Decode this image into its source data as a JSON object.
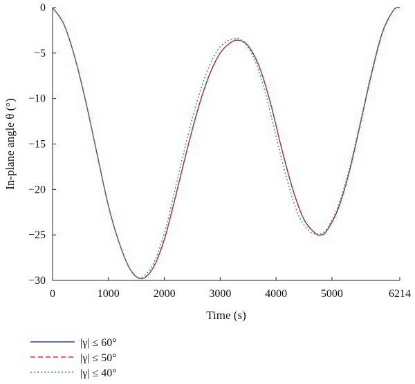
{
  "chart_data": {
    "type": "line",
    "title": "",
    "xlabel": "Time (s)",
    "ylabel": "In-plane angle θ (°)",
    "xlim": [
      0,
      6214
    ],
    "ylim": [
      -30,
      0
    ],
    "x_ticks": [
      0,
      1000,
      2000,
      3000,
      4000,
      5000,
      6214
    ],
    "x_tick_labels": [
      "0",
      "1000",
      "2000",
      "3000",
      "4000",
      "5000",
      "6214"
    ],
    "y_ticks": [
      0,
      -5,
      -10,
      -15,
      -20,
      -25,
      -30
    ],
    "y_tick_labels": [
      "0",
      "−5",
      "−10",
      "−15",
      "−20",
      "−25",
      "−30"
    ],
    "grid": false,
    "legend_position": "bottom-left",
    "series": [
      {
        "name": "|γ| ≤ 60°",
        "color": "#2c3e9e",
        "dash": "solid",
        "x": [
          0,
          200,
          400,
          600,
          800,
          1000,
          1200,
          1400,
          1600,
          1800,
          2000,
          2200,
          2400,
          2600,
          2800,
          3000,
          3200,
          3340,
          3500,
          3700,
          3900,
          4100,
          4300,
          4500,
          4700,
          4800,
          4900,
          5100,
          5300,
          5500,
          5700,
          5900,
          6100,
          6214
        ],
        "y": [
          0,
          -1.8,
          -5.5,
          -10.5,
          -16.2,
          -21.8,
          -26.0,
          -28.9,
          -29.8,
          -28.6,
          -25.5,
          -20.8,
          -15.8,
          -11.2,
          -7.5,
          -5.0,
          -3.8,
          -3.6,
          -4.2,
          -6.5,
          -10.5,
          -15.5,
          -20.0,
          -23.3,
          -24.8,
          -25.0,
          -24.6,
          -22.3,
          -18.3,
          -13.0,
          -7.5,
          -2.8,
          -0.3,
          0
        ]
      },
      {
        "name": "|γ| ≤ 50°",
        "color": "#e0303a",
        "dash": "dashed",
        "x": [
          0,
          200,
          400,
          600,
          800,
          1000,
          1200,
          1400,
          1600,
          1800,
          2000,
          2200,
          2400,
          2600,
          2800,
          3000,
          3200,
          3340,
          3500,
          3700,
          3900,
          4100,
          4300,
          4500,
          4700,
          4800,
          4900,
          5100,
          5300,
          5500,
          5700,
          5900,
          6100,
          6214
        ],
        "y": [
          0,
          -1.8,
          -5.5,
          -10.5,
          -16.2,
          -21.8,
          -26.0,
          -28.9,
          -29.8,
          -28.6,
          -25.5,
          -20.8,
          -15.8,
          -11.2,
          -7.5,
          -5.0,
          -3.8,
          -3.6,
          -4.2,
          -6.5,
          -10.5,
          -15.5,
          -20.0,
          -23.3,
          -24.8,
          -25.0,
          -24.6,
          -22.3,
          -18.3,
          -13.0,
          -7.5,
          -2.8,
          -0.3,
          0
        ]
      },
      {
        "name": "|γ| ≤ 40°",
        "color": "#2e9a4a",
        "dash": "dotted",
        "x": [
          0,
          200,
          400,
          600,
          800,
          1000,
          1200,
          1400,
          1580,
          1800,
          2000,
          2200,
          2400,
          2600,
          2800,
          3000,
          3250,
          3400,
          3600,
          3800,
          4000,
          4200,
          4400,
          4600,
          4760,
          4900,
          5100,
          5300,
          5500,
          5700,
          5900,
          6100,
          6214
        ],
        "y": [
          0,
          -1.8,
          -5.5,
          -10.5,
          -16.2,
          -21.8,
          -26.0,
          -28.9,
          -29.7,
          -28.2,
          -24.8,
          -19.8,
          -14.6,
          -10.0,
          -6.5,
          -4.3,
          -3.4,
          -3.7,
          -5.5,
          -9.2,
          -14.2,
          -19.0,
          -22.8,
          -24.6,
          -24.9,
          -24.4,
          -22.0,
          -18.0,
          -12.8,
          -7.3,
          -2.7,
          -0.3,
          0
        ]
      }
    ]
  }
}
